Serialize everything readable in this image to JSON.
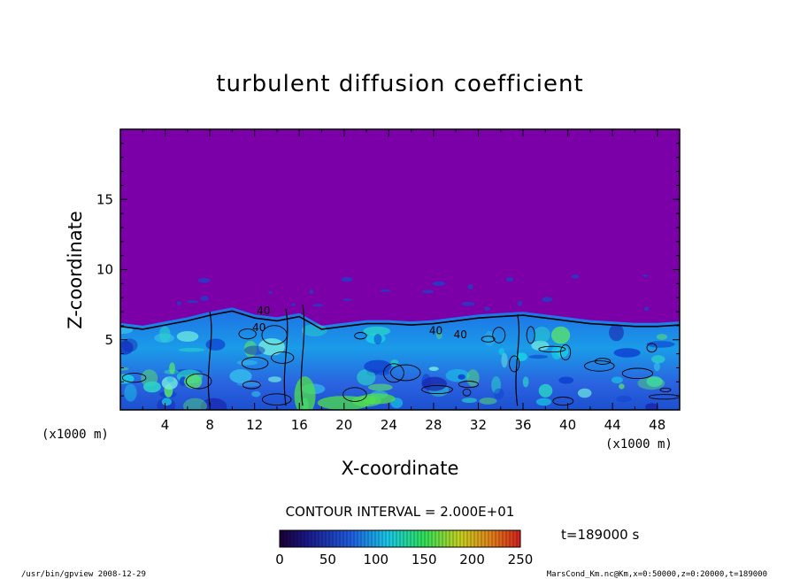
{
  "chart_data": {
    "type": "heatmap",
    "title": "turbulent diffusion coefficient",
    "xlabel": "X-coordinate",
    "ylabel": "Z-coordinate",
    "xunit": "(x1000 m)",
    "yunit": "(x1000 m)",
    "xlim": [
      0,
      50
    ],
    "ylim": [
      0,
      20
    ],
    "xticks": [
      4,
      8,
      12,
      16,
      20,
      24,
      28,
      32,
      36,
      40,
      44,
      48
    ],
    "yticks": [
      5,
      10,
      15
    ],
    "contour_interval": "CONTOUR INTERVAL = 2.000E+01",
    "contour_labels": [
      "40",
      "40",
      "40",
      "40"
    ],
    "colorbar": {
      "min": 0,
      "max": 250,
      "ticks": [
        0,
        50,
        100,
        150,
        200,
        250
      ]
    },
    "time_label": "t=189000 s",
    "background_color": "#7b00a8",
    "boundary_layer_top": [
      [
        0,
        6.2
      ],
      [
        2,
        6.0
      ],
      [
        4,
        6.3
      ],
      [
        6,
        6.6
      ],
      [
        8,
        7.0
      ],
      [
        10,
        7.3
      ],
      [
        12,
        6.8
      ],
      [
        14,
        6.6
      ],
      [
        16,
        6.9
      ],
      [
        18,
        6.0
      ],
      [
        20,
        6.2
      ],
      [
        22,
        6.4
      ],
      [
        24,
        6.4
      ],
      [
        26,
        6.3
      ],
      [
        28,
        6.4
      ],
      [
        30,
        6.6
      ],
      [
        32,
        6.8
      ],
      [
        34,
        6.9
      ],
      [
        36,
        7.0
      ],
      [
        38,
        6.8
      ],
      [
        40,
        6.6
      ],
      [
        42,
        6.4
      ],
      [
        44,
        6.3
      ],
      [
        46,
        6.2
      ],
      [
        48,
        6.2
      ],
      [
        50,
        6.3
      ]
    ]
  },
  "footer": {
    "left": "/usr/bin/gpview   2008-12-29",
    "right": "MarsCond_Km.nc@Km,x=0:50000,z=0:20000,t=189000"
  }
}
